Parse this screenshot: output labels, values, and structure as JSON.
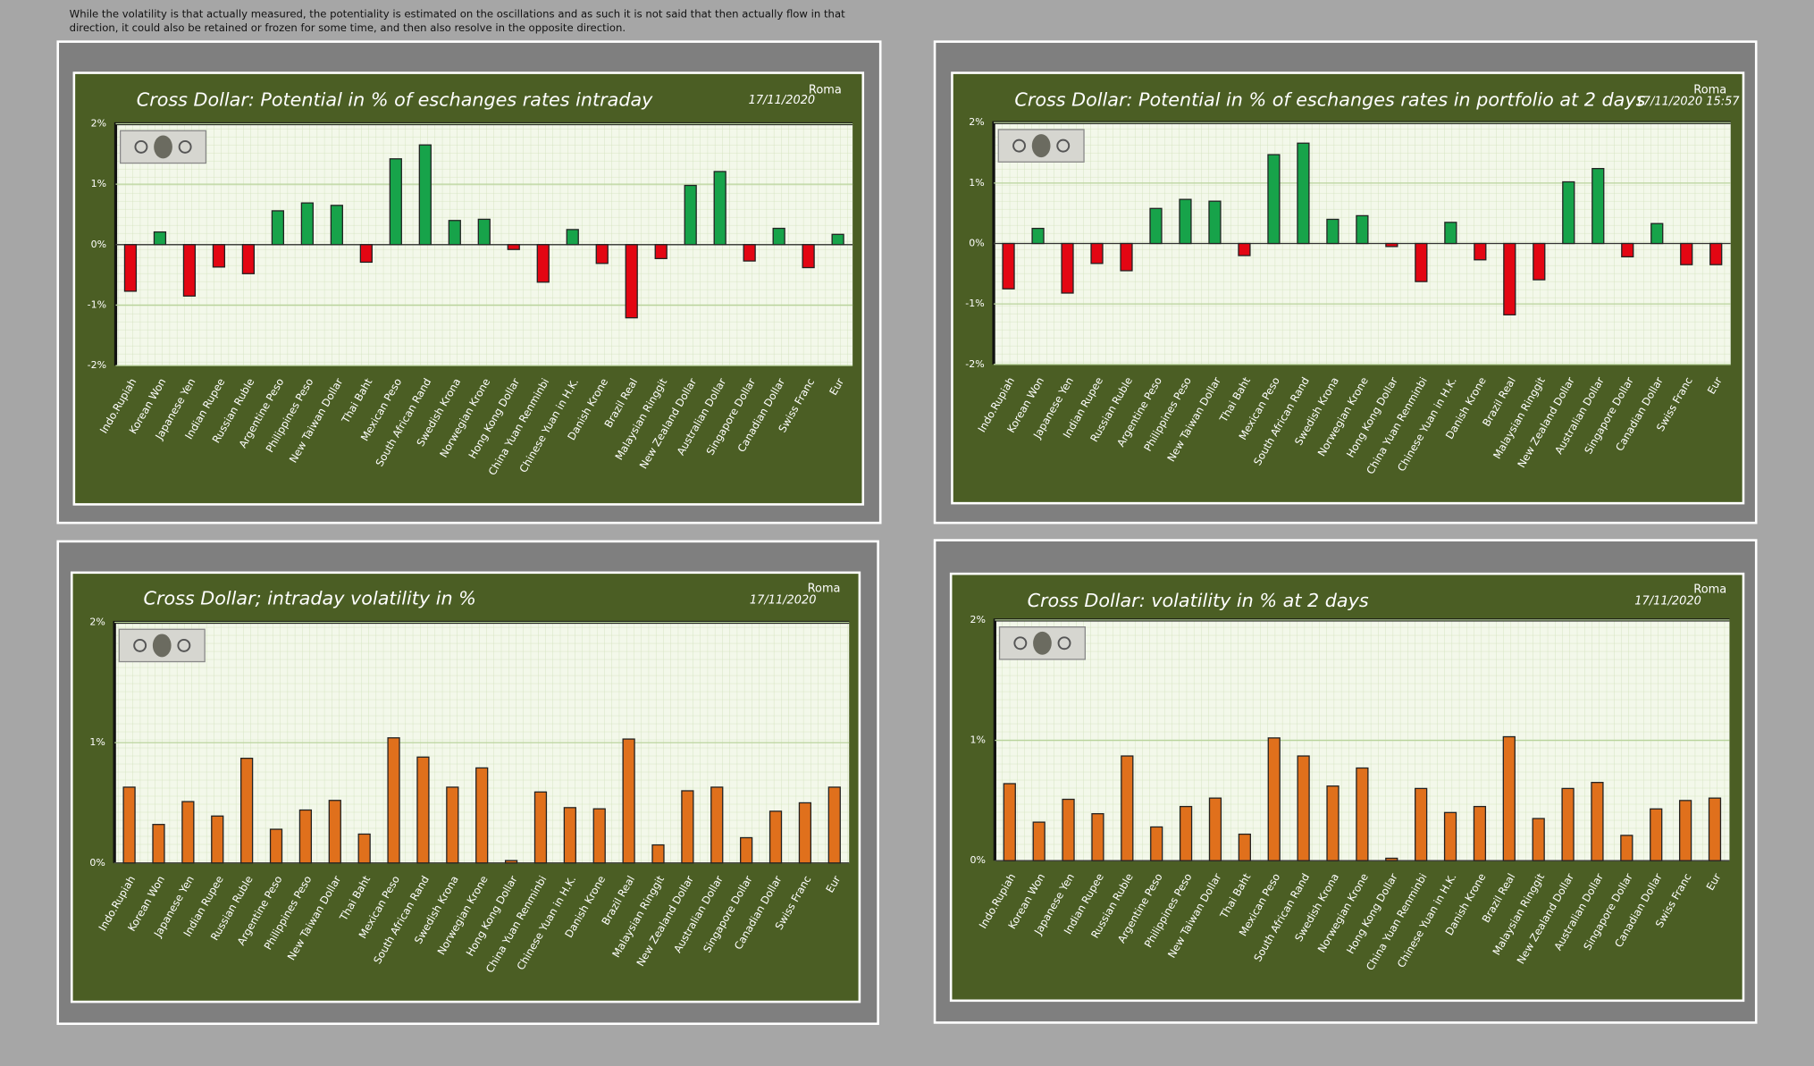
{
  "note": "While the volatility is that actually measured, the potentiality is estimated on the oscillations and as such it is not said that then actually flow in that direction, it could also be retained or frozen for some time, and then also resolve in the opposite direction.",
  "chart_data": [
    {
      "type": "bar",
      "title": "Cross Dollar:  Potential in % of eschanges  rates intraday",
      "location": "Roma",
      "date": "17/11/2020",
      "categories": [
        "Indo.Rupiah",
        "Korean Won",
        "Japanese Yen",
        "Indian Rupee",
        "Russian Ruble",
        "Argentine Peso",
        "Philippines Peso",
        "New Taiwan Dollar",
        "Thai Baht",
        "Mexican Peso",
        "South African Rand",
        "Swedish Krona",
        "Norwegian Krone",
        "Hong Kong Dollar",
        "China Yuan Renminbi",
        "Chinese Yuan in H.K.",
        "Danish Krone",
        "Brazil Real",
        "Malaysian Ringgit",
        "New Zealand Dollar",
        "Australian Dollar",
        "Singapore Dollar",
        "Canadian Dollar",
        "Swiss Franc",
        "Eur"
      ],
      "values": [
        -0.77,
        0.21,
        -0.85,
        -0.37,
        -0.48,
        0.56,
        0.69,
        0.65,
        -0.29,
        1.42,
        1.65,
        0.4,
        0.42,
        -0.08,
        -0.62,
        0.25,
        -0.31,
        -1.21,
        -0.23,
        0.98,
        1.21,
        -0.27,
        0.27,
        -0.38,
        0.17
      ],
      "positive_color": "#17a34a",
      "negative_color": "#e30613",
      "ylim": [
        -2,
        2
      ],
      "yticks": [
        {
          "value": -2,
          "label": "-2%"
        },
        {
          "value": -1,
          "label": "-1%"
        },
        {
          "value": 0,
          "label": "0%"
        },
        {
          "value": 1,
          "label": "1%"
        },
        {
          "value": 2,
          "label": "2%"
        }
      ],
      "grid": true
    },
    {
      "type": "bar",
      "title": "Cross Dollar:  Potential in % of eschanges  rates in portfolio  at 2 days",
      "location": "Roma",
      "date": "17/11/2020 15:57",
      "categories": [
        "Indo.Rupiah",
        "Korean Won",
        "Japanese Yen",
        "Indian Rupee",
        "Russian Ruble",
        "Argentine Peso",
        "Philippines Peso",
        "New Taiwan Dollar",
        "Thai Baht",
        "Mexican Peso",
        "South African Rand",
        "Swedish Krona",
        "Norwegian Krone",
        "Hong Kong Dollar",
        "China Yuan Renminbi",
        "Chinese Yuan in H.K.",
        "Danish Krone",
        "Brazil Real",
        "Malaysian Ringgit",
        "New Zealand Dollar",
        "Australian Dollar",
        "Singapore Dollar",
        "Canadian Dollar",
        "Swiss Franc",
        "Eur"
      ],
      "values": [
        -0.75,
        0.25,
        -0.82,
        -0.33,
        -0.45,
        0.58,
        0.73,
        0.7,
        -0.2,
        1.47,
        1.66,
        0.4,
        0.46,
        -0.05,
        -0.63,
        0.35,
        -0.27,
        -1.18,
        -0.6,
        1.02,
        1.24,
        -0.22,
        0.33,
        -0.35,
        -0.35
      ],
      "positive_color": "#17a34a",
      "negative_color": "#e30613",
      "ylim": [
        -2,
        2
      ],
      "yticks": [
        {
          "value": -2,
          "label": "-2%"
        },
        {
          "value": -1,
          "label": "-1%"
        },
        {
          "value": 0,
          "label": "0%"
        },
        {
          "value": 1,
          "label": "1%"
        },
        {
          "value": 2,
          "label": "2%"
        }
      ],
      "grid": true
    },
    {
      "type": "bar",
      "title": "Cross Dollar; intraday volatility in %",
      "location": "Roma",
      "date": "17/11/2020",
      "categories": [
        "Indo.Rupiah",
        "Korean Won",
        "Japanese Yen",
        "Indian Rupee",
        "Russian Ruble",
        "Argentine Peso",
        "Philippines Peso",
        "New Taiwan Dollar",
        "Thai Baht",
        "Mexican Peso",
        "South African Rand",
        "Swedish Krona",
        "Norwegian Krone",
        "Hong Kong Dollar",
        "China Yuan Renminbi",
        "Chinese Yuan in H.K.",
        "Danish Krone",
        "Brazil Real",
        "Malaysian Ringgit",
        "New Zealand Dollar",
        "Australian Dollar",
        "Singapore Dollar",
        "Canadian Dollar",
        "Swiss Franc",
        "Eur"
      ],
      "values": [
        0.63,
        0.32,
        0.51,
        0.39,
        0.87,
        0.28,
        0.44,
        0.52,
        0.24,
        1.04,
        0.88,
        0.63,
        0.79,
        0.02,
        0.59,
        0.46,
        0.45,
        1.03,
        0.15,
        0.6,
        0.63,
        0.21,
        0.43,
        0.5,
        0.63
      ],
      "color": "#e0701c",
      "ylim": [
        0,
        2
      ],
      "yticks": [
        {
          "value": 0,
          "label": "0%"
        },
        {
          "value": 1,
          "label": "1%"
        },
        {
          "value": 2,
          "label": "2%"
        }
      ],
      "grid": true
    },
    {
      "type": "bar",
      "title": "Cross Dollar: volatility in % at 2 days",
      "location": "Roma",
      "date": "17/11/2020",
      "categories": [
        "Indo.Rupiah",
        "Korean Won",
        "Japanese Yen",
        "Indian Rupee",
        "Russian Ruble",
        "Argentine Peso",
        "Philippines Peso",
        "New Taiwan Dollar",
        "Thai Baht",
        "Mexican Peso",
        "South African Rand",
        "Swedish Krona",
        "Norwegian Krone",
        "Hong Kong Dollar",
        "China Yuan Renminbi",
        "Chinese Yuan in H.K.",
        "Danish Krone",
        "Brazil Real",
        "Malaysian Ringgit",
        "New Zealand Dollar",
        "Australian Dollar",
        "Singapore Dollar",
        "Canadian Dollar",
        "Swiss Franc",
        "Eur"
      ],
      "values": [
        0.64,
        0.32,
        0.51,
        0.39,
        0.87,
        0.28,
        0.45,
        0.52,
        0.22,
        1.02,
        0.87,
        0.62,
        0.77,
        0.02,
        0.6,
        0.4,
        0.45,
        1.03,
        0.35,
        0.6,
        0.65,
        0.21,
        0.43,
        0.5,
        0.52
      ],
      "color": "#e0701c",
      "ylim": [
        0,
        2
      ],
      "yticks": [
        {
          "value": 0,
          "label": "0%"
        },
        {
          "value": 1,
          "label": "1%"
        },
        {
          "value": 2,
          "label": "2%"
        }
      ],
      "grid": true
    }
  ]
}
